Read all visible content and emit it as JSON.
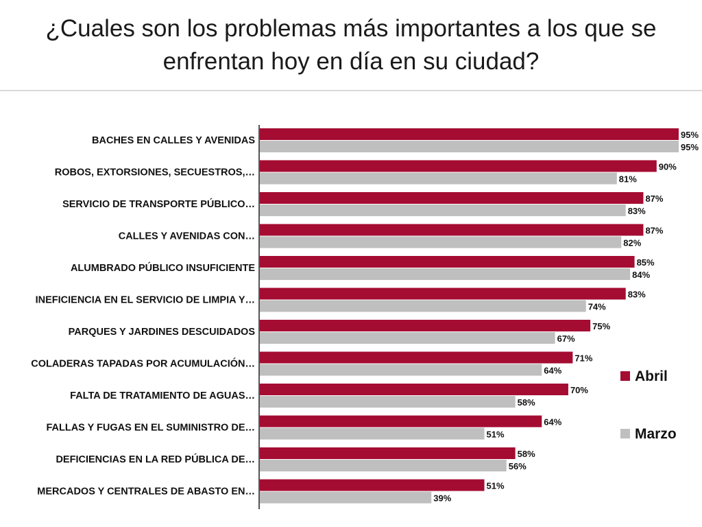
{
  "title": "¿Cuales son los problemas más importantes a los que se enfrentan hoy en día en su ciudad?",
  "chart_data": {
    "type": "bar",
    "orientation": "horizontal",
    "title": "¿Cuales son los problemas más importantes a los que se enfrentan hoy en día en su ciudad?",
    "categories": [
      "BACHES EN CALLES Y AVENIDAS",
      "ROBOS, EXTORSIONES, SECUESTROS,…",
      "SERVICIO DE TRANSPORTE PÚBLICO…",
      "CALLES Y AVENIDAS CON…",
      "ALUMBRADO PÚBLICO INSUFICIENTE",
      "INEFICIENCIA EN EL SERVICIO DE LIMPIA Y…",
      "PARQUES Y JARDINES DESCUIDADOS",
      "COLADERAS TAPADAS POR ACUMULACIÓN…",
      "FALTA DE TRATAMIENTO DE AGUAS…",
      "FALLAS Y FUGAS EN EL SUMINISTRO DE…",
      "DEFICIENCIAS EN LA RED PÚBLICA DE…",
      "MERCADOS Y CENTRALES DE ABASTO EN…"
    ],
    "series": [
      {
        "name": "Abril",
        "color": "#A50C32",
        "values": [
          95,
          90,
          87,
          87,
          85,
          83,
          75,
          71,
          70,
          64,
          58,
          51
        ],
        "labels": [
          "95%",
          "90%",
          "87%",
          "87%",
          "85%",
          "83%",
          "75%",
          "71%",
          "70%",
          "64%",
          "58%",
          "51%"
        ]
      },
      {
        "name": "Marzo",
        "color": "#BFBFBF",
        "values": [
          95,
          81,
          83,
          82,
          84,
          74,
          67,
          64,
          58,
          51,
          56,
          39
        ],
        "labels": [
          "95%",
          "81%",
          "83%",
          "82%",
          "84%",
          "74%",
          "67%",
          "64%",
          "58%",
          "51%",
          "56%",
          "39%"
        ]
      }
    ],
    "xlim": [
      0,
      95
    ],
    "grid": false,
    "legend": "right"
  }
}
